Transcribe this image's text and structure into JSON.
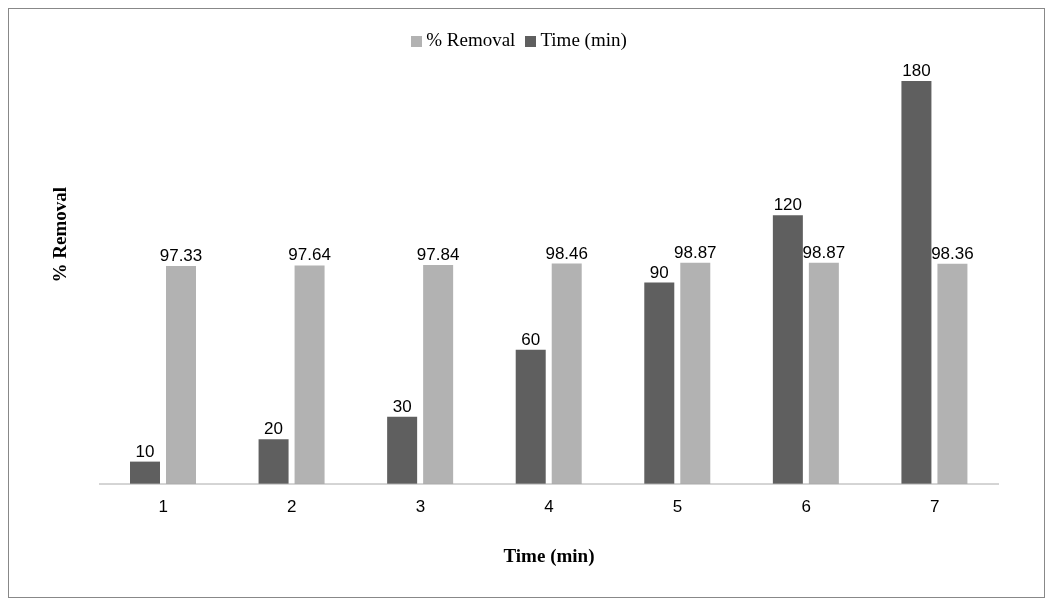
{
  "chart_data": {
    "type": "bar",
    "xlabel": "Time (min)",
    "ylabel": "% Removal",
    "categories": [
      "1",
      "2",
      "3",
      "4",
      "5",
      "6",
      "7"
    ],
    "series": [
      {
        "name": "Time (min)",
        "color": "#5f5f5f",
        "values": [
          10,
          20,
          30,
          60,
          90,
          120,
          180
        ]
      },
      {
        "name": "% Removal",
        "color": "#b2b2b2",
        "values": [
          97.33,
          97.64,
          97.84,
          98.46,
          98.87,
          98.87,
          98.36
        ]
      }
    ],
    "data_labels": true,
    "legend": "top",
    "grid": false
  }
}
